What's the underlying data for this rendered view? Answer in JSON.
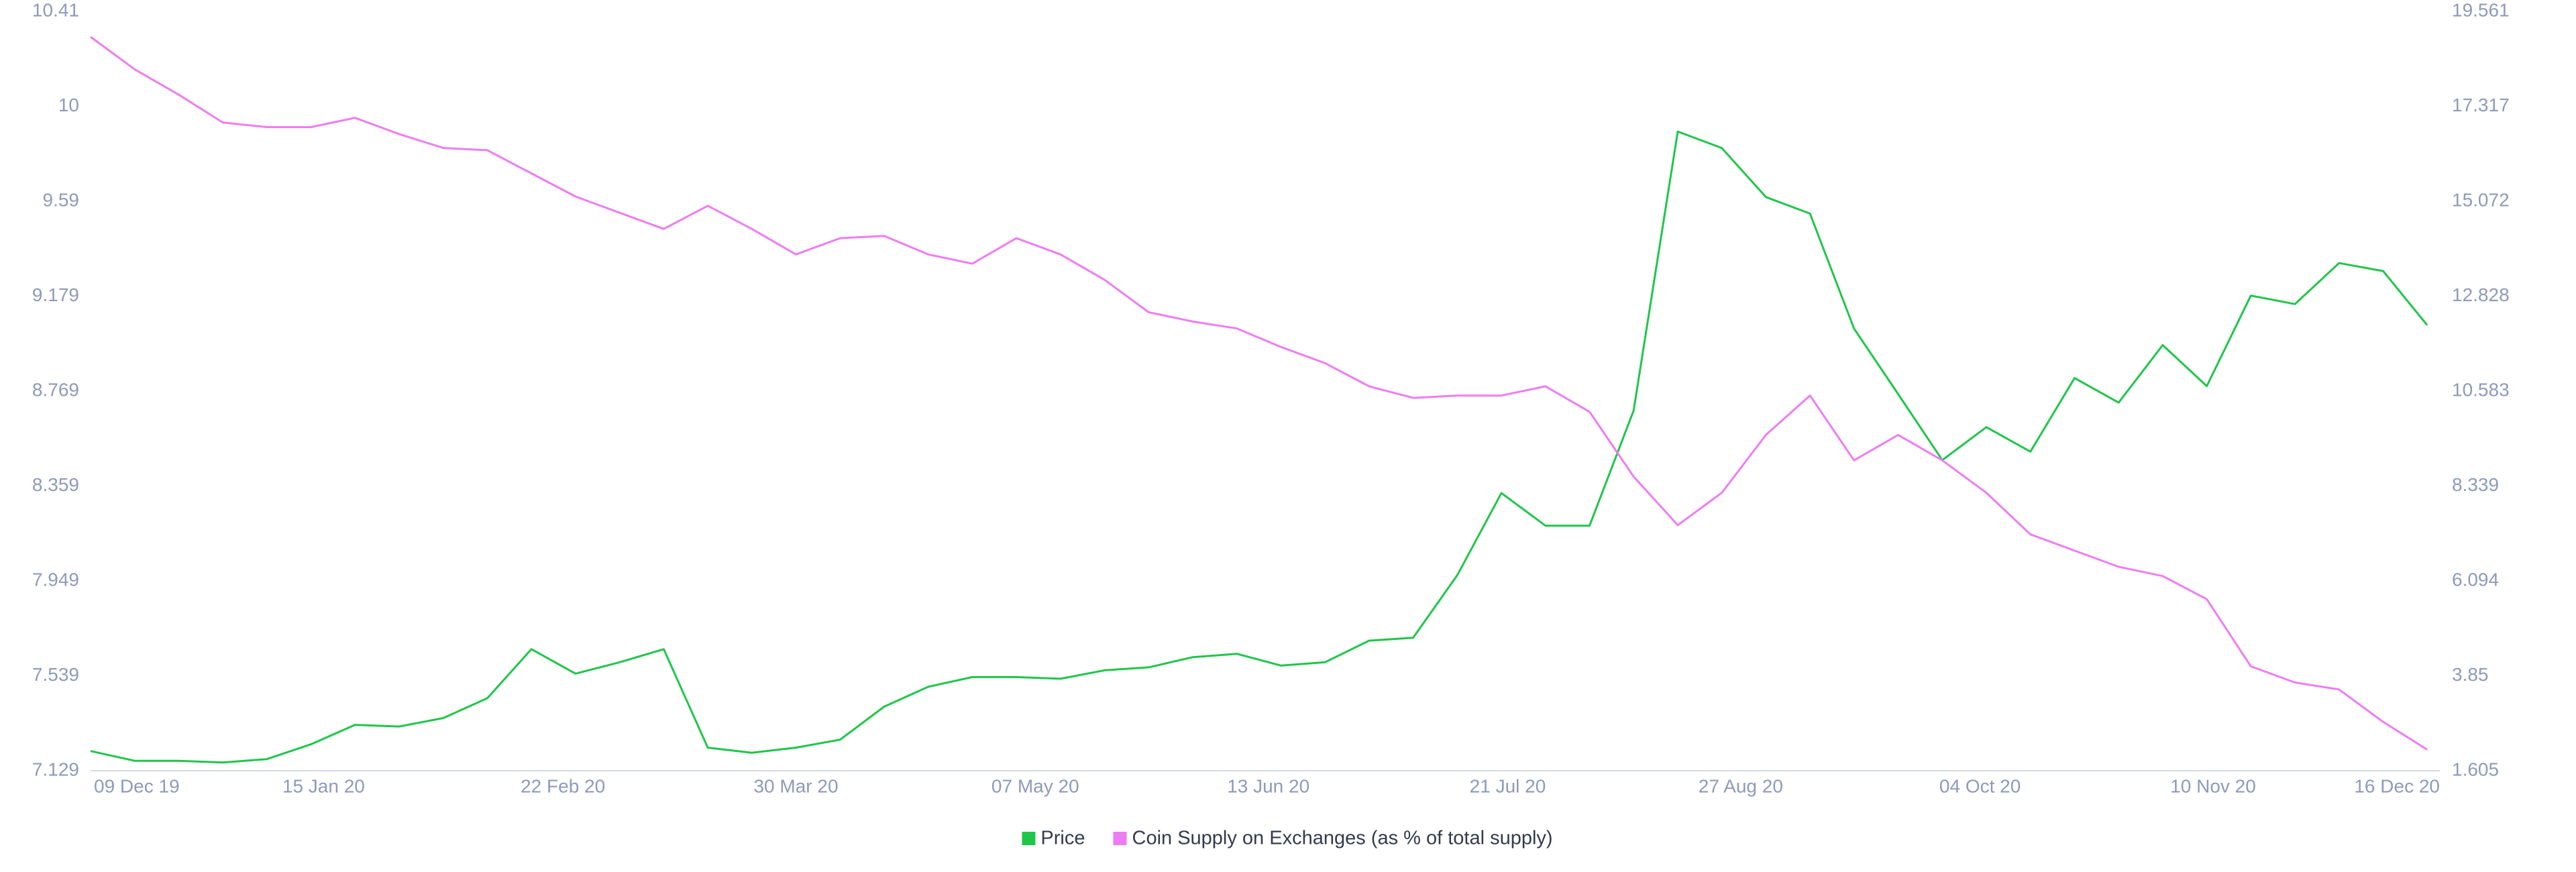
{
  "chart_data": {
    "type": "line",
    "x": [
      "2019-12-09",
      "2019-12-16",
      "2019-12-23",
      "2019-12-30",
      "2020-01-06",
      "2020-01-13",
      "2020-01-20",
      "2020-01-27",
      "2020-02-03",
      "2020-02-10",
      "2020-02-17",
      "2020-02-24",
      "2020-03-02",
      "2020-03-09",
      "2020-03-16",
      "2020-03-23",
      "2020-03-30",
      "2020-04-06",
      "2020-04-13",
      "2020-04-20",
      "2020-04-27",
      "2020-05-04",
      "2020-05-11",
      "2020-05-18",
      "2020-05-25",
      "2020-06-01",
      "2020-06-08",
      "2020-06-15",
      "2020-06-22",
      "2020-06-29",
      "2020-07-06",
      "2020-07-13",
      "2020-07-20",
      "2020-07-27",
      "2020-08-03",
      "2020-08-10",
      "2020-08-17",
      "2020-08-24",
      "2020-08-31",
      "2020-09-07",
      "2020-09-14",
      "2020-09-21",
      "2020-09-28",
      "2020-10-05",
      "2020-10-12",
      "2020-10-19",
      "2020-10-26",
      "2020-11-02",
      "2020-11-09",
      "2020-11-16",
      "2020-11-23",
      "2020-11-30",
      "2020-12-07",
      "2020-12-14"
    ],
    "series": [
      {
        "name": "Price",
        "color": "#1fc64a",
        "axis": "y2",
        "values": [
          2.07,
          1.84,
          1.84,
          1.8,
          1.88,
          2.23,
          2.69,
          2.65,
          2.85,
          3.32,
          4.48,
          3.9,
          4.17,
          4.48,
          2.15,
          2.03,
          2.15,
          2.34,
          3.12,
          3.59,
          3.82,
          3.82,
          3.78,
          3.98,
          4.05,
          4.29,
          4.37,
          4.09,
          4.17,
          4.68,
          4.75,
          6.23,
          8.17,
          7.4,
          7.4,
          10.12,
          16.72,
          16.33,
          15.17,
          14.78,
          12.06,
          10.51,
          8.95,
          9.73,
          9.15,
          10.89,
          10.31,
          11.67,
          10.7,
          12.84,
          12.64,
          13.61,
          13.42,
          12.14
        ]
      },
      {
        "name": "Coin Supply on Exchanges (as % of total supply)",
        "color": "#ee7cf2",
        "values": [
          10.3,
          10.16,
          10.05,
          9.93,
          9.91,
          9.91,
          9.95,
          9.88,
          9.82,
          9.81,
          9.71,
          9.61,
          9.54,
          9.47,
          9.57,
          9.47,
          9.36,
          9.43,
          9.44,
          9.36,
          9.32,
          9.43,
          9.36,
          9.25,
          9.11,
          9.07,
          9.04,
          8.96,
          8.89,
          8.79,
          8.74,
          8.75,
          8.75,
          8.79,
          8.68,
          8.4,
          8.19,
          8.33,
          8.58,
          8.75,
          8.47,
          8.58,
          8.47,
          8.33,
          8.15,
          8.08,
          8.01,
          7.97,
          7.87,
          7.58,
          7.51,
          7.48,
          7.34,
          7.22
        ]
      }
    ],
    "xlim": [
      "2019-12-09",
      "2020-12-16"
    ],
    "xticks": [
      {
        "value": "2019-12-09",
        "label": "09 Dec 19"
      },
      {
        "value": "2020-01-15",
        "label": "15 Jan 20"
      },
      {
        "value": "2020-02-22",
        "label": "22 Feb 20"
      },
      {
        "value": "2020-03-30",
        "label": "30 Mar 20"
      },
      {
        "value": "2020-05-07",
        "label": "07 May 20"
      },
      {
        "value": "2020-06-13",
        "label": "13 Jun 20"
      },
      {
        "value": "2020-07-21",
        "label": "21 Jul 20"
      },
      {
        "value": "2020-08-27",
        "label": "27 Aug 20"
      },
      {
        "value": "2020-10-04",
        "label": "04 Oct 20"
      },
      {
        "value": "2020-11-10",
        "label": "10 Nov 20"
      },
      {
        "value": "2020-12-16",
        "label": "16 Dec 20"
      }
    ],
    "ylim": [
      7.129,
      10.41
    ],
    "yticks": [
      7.129,
      7.539,
      7.949,
      8.359,
      8.769,
      9.179,
      9.59,
      10,
      10.41
    ],
    "y2lim": [
      1.605,
      19.561
    ],
    "y2ticks": [
      1.605,
      3.85,
      6.094,
      8.339,
      10.583,
      12.828,
      15.072,
      17.317,
      19.561
    ]
  }
}
